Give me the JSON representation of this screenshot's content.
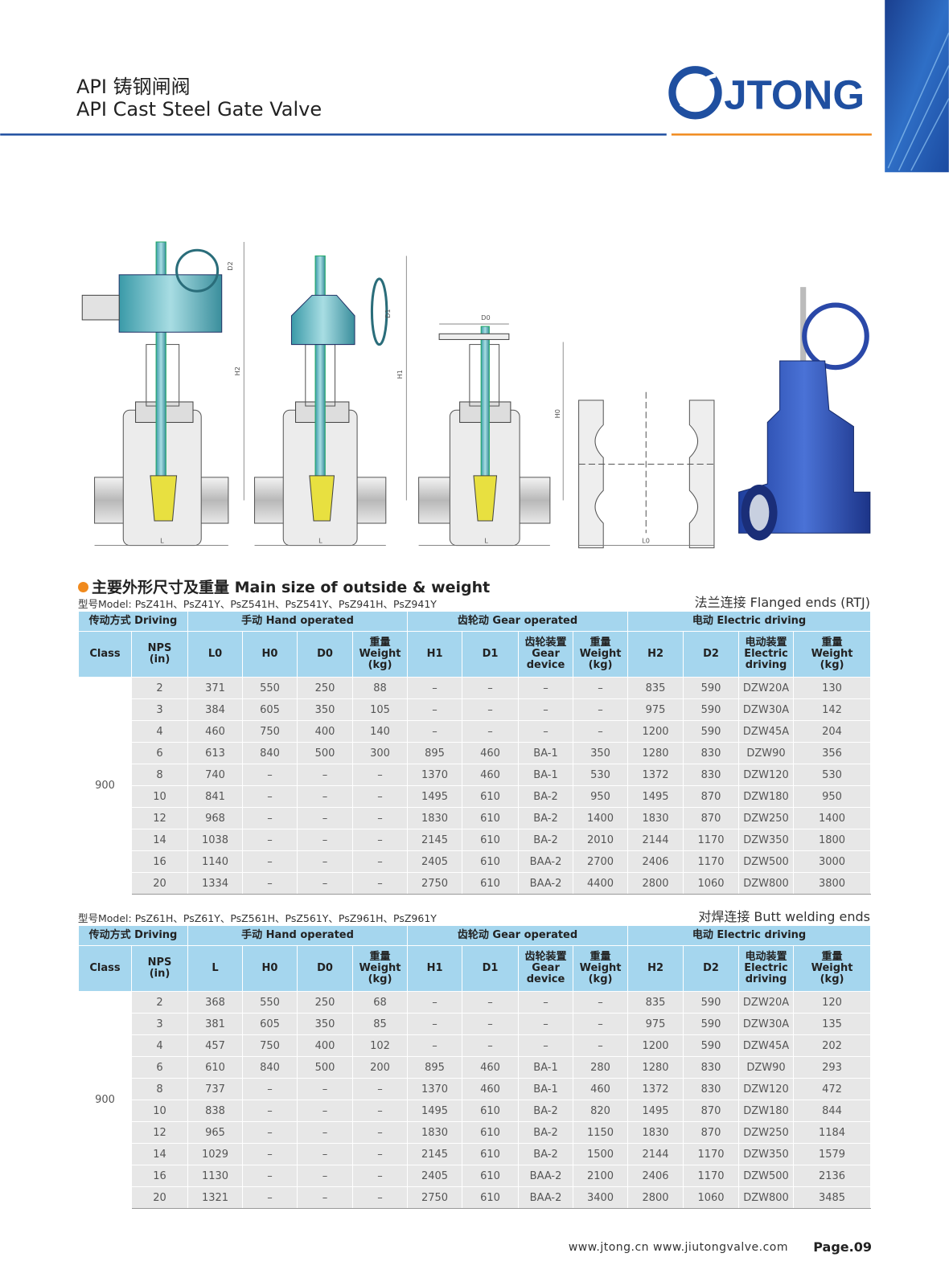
{
  "header": {
    "title_cn": "API 铸钢闸阀",
    "title_en": "API Cast Steel Gate Valve",
    "logo": "JTONG"
  },
  "drawings": {
    "labels": [
      "D2",
      "H2",
      "D1",
      "H1",
      "D0",
      "H0",
      "L",
      "L",
      "L",
      "L0"
    ]
  },
  "section": {
    "title": "主要外形尺寸及重量 Main size of outside & weight"
  },
  "tables": [
    {
      "model": "型号Model: PsZ41H、PsZ41Y、PsZ541H、PsZ541Y、PsZ941H、PsZ941Y",
      "ends": "法兰连接 Flanged ends (RTJ)",
      "groups": [
        "传动方式 Driving",
        "手动 Hand operated",
        "齿轮动 Gear operated",
        "电动 Electric driving"
      ],
      "columns": [
        [
          "Class"
        ],
        [
          "NPS",
          "(in)"
        ],
        [
          "L0"
        ],
        [
          "H0"
        ],
        [
          "D0"
        ],
        [
          "重量",
          "Weight",
          "(kg)"
        ],
        [
          "H1"
        ],
        [
          "D1"
        ],
        [
          "齿轮装置",
          "Gear",
          "device"
        ],
        [
          "重量",
          "Weight",
          "(kg)"
        ],
        [
          "H2"
        ],
        [
          "D2"
        ],
        [
          "电动装置",
          "Electric",
          "driving"
        ],
        [
          "重量",
          "Weight",
          "(kg)"
        ]
      ],
      "class": 900,
      "rows": [
        [
          2,
          371,
          550,
          250,
          88,
          "–",
          "–",
          "–",
          "–",
          835,
          590,
          "DZW20A",
          130
        ],
        [
          3,
          384,
          605,
          350,
          105,
          "–",
          "–",
          "–",
          "–",
          975,
          590,
          "DZW30A",
          142
        ],
        [
          4,
          460,
          750,
          400,
          140,
          "–",
          "–",
          "–",
          "–",
          1200,
          590,
          "DZW45A",
          204
        ],
        [
          6,
          613,
          840,
          500,
          300,
          895,
          460,
          "BA-1",
          350,
          1280,
          830,
          "DZW90",
          356
        ],
        [
          8,
          740,
          "–",
          "–",
          "–",
          1370,
          460,
          "BA-1",
          530,
          1372,
          830,
          "DZW120",
          530
        ],
        [
          10,
          841,
          "–",
          "–",
          "–",
          1495,
          610,
          "BA-2",
          950,
          1495,
          870,
          "DZW180",
          950
        ],
        [
          12,
          968,
          "–",
          "–",
          "–",
          1830,
          610,
          "BA-2",
          1400,
          1830,
          870,
          "DZW250",
          1400
        ],
        [
          14,
          1038,
          "–",
          "–",
          "–",
          2145,
          610,
          "BA-2",
          2010,
          2144,
          1170,
          "DZW350",
          1800
        ],
        [
          16,
          1140,
          "–",
          "–",
          "–",
          2405,
          610,
          "BAA-2",
          2700,
          2406,
          1170,
          "DZW500",
          3000
        ],
        [
          20,
          1334,
          "–",
          "–",
          "–",
          2750,
          610,
          "BAA-2",
          4400,
          2800,
          1060,
          "DZW800",
          3800
        ]
      ]
    },
    {
      "model": "型号Model: PsZ61H、PsZ61Y、PsZ561H、PsZ561Y、PsZ961H、PsZ961Y",
      "ends": "对焊连接 Butt welding ends",
      "groups": [
        "传动方式 Driving",
        "手动 Hand operated",
        "齿轮动 Gear operated",
        "电动 Electric driving"
      ],
      "columns": [
        [
          "Class"
        ],
        [
          "NPS",
          "(in)"
        ],
        [
          "L"
        ],
        [
          "H0"
        ],
        [
          "D0"
        ],
        [
          "重量",
          "Weight",
          "(kg)"
        ],
        [
          "H1"
        ],
        [
          "D1"
        ],
        [
          "齿轮装置",
          "Gear",
          "device"
        ],
        [
          "重量",
          "Weight",
          "(kg)"
        ],
        [
          "H2"
        ],
        [
          "D2"
        ],
        [
          "电动装置",
          "Electric",
          "driving"
        ],
        [
          "重量",
          "Weight",
          "(kg)"
        ]
      ],
      "class": 900,
      "rows": [
        [
          2,
          368,
          550,
          250,
          68,
          "–",
          "–",
          "–",
          "–",
          835,
          590,
          "DZW20A",
          120
        ],
        [
          3,
          381,
          605,
          350,
          85,
          "–",
          "–",
          "–",
          "–",
          975,
          590,
          "DZW30A",
          135
        ],
        [
          4,
          457,
          750,
          400,
          102,
          "–",
          "–",
          "–",
          "–",
          1200,
          590,
          "DZW45A",
          202
        ],
        [
          6,
          610,
          840,
          500,
          200,
          895,
          460,
          "BA-1",
          280,
          1280,
          830,
          "DZW90",
          293
        ],
        [
          8,
          737,
          "–",
          "–",
          "–",
          1370,
          460,
          "BA-1",
          460,
          1372,
          830,
          "DZW120",
          472
        ],
        [
          10,
          838,
          "–",
          "–",
          "–",
          1495,
          610,
          "BA-2",
          820,
          1495,
          870,
          "DZW180",
          844
        ],
        [
          12,
          965,
          "–",
          "–",
          "–",
          1830,
          610,
          "BA-2",
          1150,
          1830,
          870,
          "DZW250",
          1184
        ],
        [
          14,
          1029,
          "–",
          "–",
          "–",
          2145,
          610,
          "BA-2",
          1500,
          2144,
          1170,
          "DZW350",
          1579
        ],
        [
          16,
          1130,
          "–",
          "–",
          "–",
          2405,
          610,
          "BAA-2",
          2100,
          2406,
          1170,
          "DZW500",
          2136
        ],
        [
          20,
          1321,
          "–",
          "–",
          "–",
          2750,
          610,
          "BAA-2",
          3400,
          2800,
          1060,
          "DZW800",
          3485
        ]
      ]
    }
  ],
  "footer": {
    "websites": "www.jtong.cn  www.jiutongvalve.com",
    "page": "Page.09"
  }
}
